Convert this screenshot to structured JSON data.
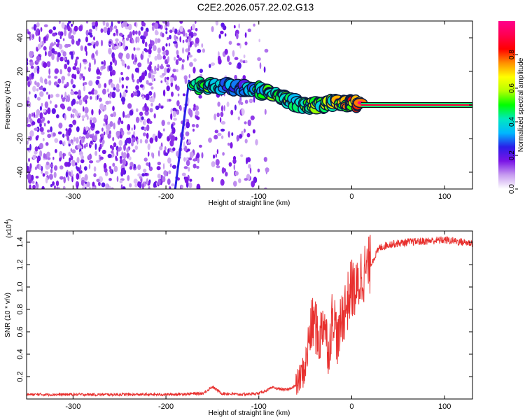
{
  "figure": {
    "title": "C2E2.2026.057.22.02.G13"
  },
  "chart_data": [
    {
      "type": "heatmap",
      "xlabel": "Height of straight line (km)",
      "ylabel": "Frequency (Hz)",
      "xlim": [
        -350,
        130
      ],
      "ylim": [
        -50,
        50
      ],
      "xticks": [
        -300,
        -200,
        -100,
        0,
        100
      ],
      "yticks": [
        -40,
        -20,
        0,
        20,
        40
      ],
      "colorbar": {
        "label": "Normalized spectral amplitude",
        "range": [
          0,
          1
        ],
        "ticks": [
          "0.0",
          "0.2",
          "0.4",
          "0.6",
          "0.8"
        ],
        "colormap": [
          "#ffffff",
          "#c79cf0",
          "#7a14e6",
          "#2a1ee8",
          "#00b7ff",
          "#00e8c0",
          "#00ff00",
          "#b4ff00",
          "#ffff00",
          "#ff9000",
          "#ff0000",
          "#ff0050",
          "#ff008c"
        ]
      },
      "noise": {
        "x_range": [
          -350,
          -90
        ],
        "amplitude": [
          0.05,
          0.2
        ]
      },
      "signal_track": [
        {
          "x": -170,
          "y": 12,
          "amp": 0.55
        },
        {
          "x": -155,
          "y": 11,
          "amp": 0.6
        },
        {
          "x": -140,
          "y": 11,
          "amp": 0.5
        },
        {
          "x": -120,
          "y": 10,
          "amp": 0.3
        },
        {
          "x": -100,
          "y": 9,
          "amp": 0.55
        },
        {
          "x": -85,
          "y": 6,
          "amp": 0.6
        },
        {
          "x": -70,
          "y": 4,
          "amp": 0.65
        },
        {
          "x": -55,
          "y": 0,
          "amp": 0.6
        },
        {
          "x": -40,
          "y": 0,
          "amp": 0.65
        },
        {
          "x": -25,
          "y": 1,
          "amp": 0.7
        },
        {
          "x": -10,
          "y": 1,
          "amp": 0.8
        },
        {
          "x": 0,
          "y": 1,
          "amp": 0.85
        },
        {
          "x": 10,
          "y": 0,
          "amp": 1.0
        },
        {
          "x": 130,
          "y": 0,
          "amp": 1.0
        }
      ],
      "diagonal_streak": {
        "from": [
          -190,
          -50
        ],
        "to": [
          -175,
          15
        ]
      }
    },
    {
      "type": "line",
      "xlabel": "Height of straight line (km)",
      "ylabel": "SNR (10 * v/v)",
      "scale_note": "(x10",
      "scale_exponent": "4",
      "xlim": [
        -350,
        130
      ],
      "ylim": [
        0,
        1.5
      ],
      "xticks": [
        -300,
        -200,
        -100,
        0,
        100
      ],
      "yticks": [
        0.2,
        0.4,
        0.6,
        0.8,
        1.0,
        1.2,
        1.4
      ],
      "color": "#e8302e",
      "x": [
        -350,
        -300,
        -250,
        -200,
        -160,
        -150,
        -140,
        -120,
        -100,
        -85,
        -70,
        -60,
        -50,
        -45,
        -40,
        -35,
        -30,
        -25,
        -20,
        -15,
        -10,
        -5,
        0,
        5,
        10,
        20,
        30,
        40,
        60,
        80,
        100,
        120,
        130
      ],
      "y": [
        0.04,
        0.04,
        0.04,
        0.04,
        0.05,
        0.11,
        0.05,
        0.04,
        0.05,
        0.1,
        0.08,
        0.12,
        0.28,
        0.6,
        0.7,
        0.5,
        0.75,
        0.4,
        0.8,
        0.5,
        0.75,
        0.85,
        1.0,
        0.95,
        1.1,
        1.2,
        1.35,
        1.38,
        1.4,
        1.41,
        1.42,
        1.4,
        1.39
      ]
    }
  ]
}
